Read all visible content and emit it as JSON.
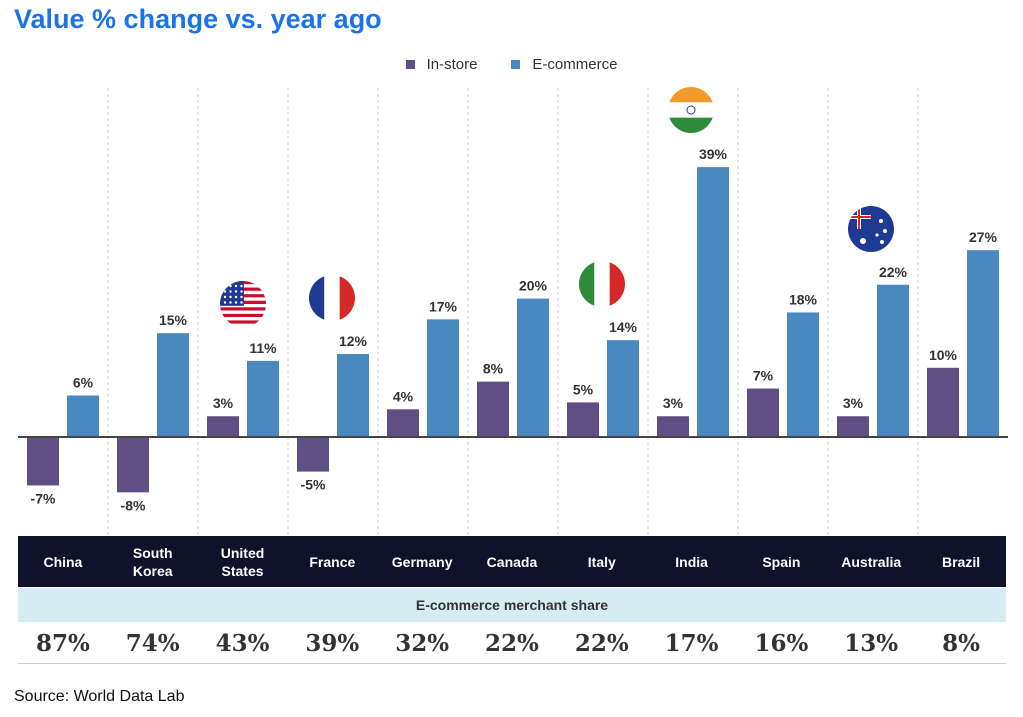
{
  "title": "Value % change vs. year ago",
  "colors": {
    "title": "#1a73e8",
    "instore": "#5f4f85",
    "ecommerce": "#4a88c0",
    "header_bg": "#10112b",
    "share_bg": "#d5ecf2"
  },
  "share_label": "E-commerce merchant share",
  "source": "Source: World Data Lab",
  "chart_data": {
    "type": "bar",
    "title": "Value % change vs. year ago",
    "categories": [
      "China",
      "South\nKorea",
      "United\nStates",
      "France",
      "Germany",
      "Canada",
      "Italy",
      "India",
      "Spain",
      "Australia",
      "Brazil"
    ],
    "series": [
      {
        "name": "In-store",
        "values": [
          -7,
          -8,
          3,
          -5,
          4,
          8,
          5,
          3,
          7,
          3,
          10
        ],
        "labels": [
          "-7%",
          "-8%",
          "3%",
          "-5%",
          "4%",
          "8%",
          "5%",
          "3%",
          "7%",
          "3%",
          "10%"
        ]
      },
      {
        "name": "E-commerce",
        "values": [
          6,
          15,
          11,
          12,
          17,
          20,
          14,
          39,
          18,
          22,
          27
        ],
        "labels": [
          "6%",
          "15%",
          "11%",
          "12%",
          "17%",
          "20%",
          "14%",
          "39%",
          "18%",
          "22%",
          "27%"
        ]
      }
    ],
    "legend": "top-center",
    "flags": [
      "United\nStates",
      "France",
      "Italy",
      "India",
      "Australia"
    ],
    "merchant_share": [
      "87%",
      "74%",
      "43%",
      "39%",
      "32%",
      "22%",
      "22%",
      "17%",
      "16%",
      "13%",
      "8%"
    ]
  }
}
